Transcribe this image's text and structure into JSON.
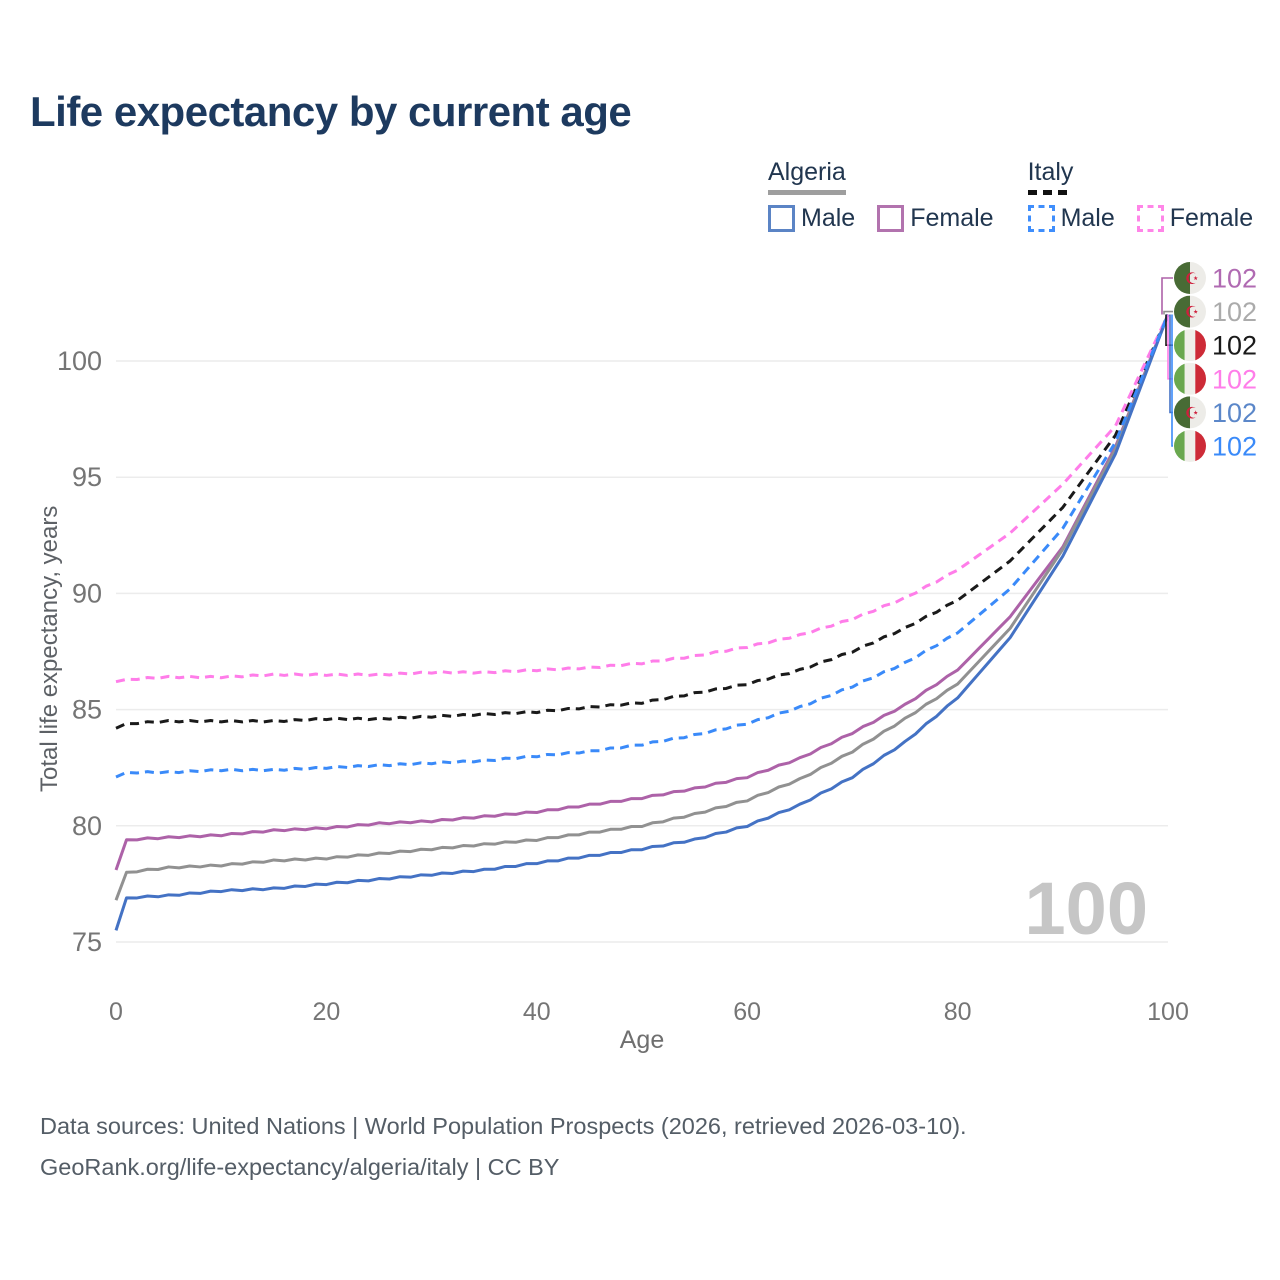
{
  "title": "Life expectancy by current age",
  "legend": {
    "groups": [
      {
        "label": "Algeria",
        "underline_style": "solid",
        "underline_color": "#9e9e9e",
        "items": [
          {
            "label": "Male",
            "color": "#5b84c5",
            "dash": false
          },
          {
            "label": "Female",
            "color": "#b273ae",
            "dash": false
          }
        ]
      },
      {
        "label": "Italy",
        "underline_style": "dashed",
        "underline_color": "#111111",
        "items": [
          {
            "label": "Male",
            "color": "#3f8efc",
            "dash": true
          },
          {
            "label": "Female",
            "color": "#ff85e8",
            "dash": true
          }
        ]
      }
    ]
  },
  "chart_data": {
    "type": "line",
    "title": "Life expectancy by current age",
    "xlabel": "Age",
    "ylabel": "Total life expectancy, years",
    "xlim": [
      0,
      100
    ],
    "ylim": [
      75,
      102.5
    ],
    "xticks": [
      0,
      20,
      40,
      60,
      80,
      100
    ],
    "yticks": [
      75,
      80,
      85,
      90,
      95,
      100
    ],
    "grid": true,
    "legend_position": "top-right",
    "watermark": "100",
    "x": [
      0,
      1,
      5,
      10,
      15,
      20,
      25,
      30,
      35,
      40,
      45,
      50,
      55,
      60,
      65,
      70,
      75,
      80,
      85,
      90,
      95,
      100
    ],
    "series": [
      {
        "id": "algeria-female",
        "name": "Algeria Female",
        "country": "algeria",
        "flag": "algeria-flag",
        "color": "#ad62a8",
        "dash": "solid",
        "end_label": "102",
        "end_label_color": "#b06ab2",
        "values": [
          78.1,
          79.4,
          79.5,
          79.6,
          79.8,
          79.9,
          80.1,
          80.2,
          80.4,
          80.6,
          80.9,
          81.2,
          81.6,
          82.1,
          82.9,
          84.0,
          85.2,
          86.7,
          89.0,
          92.0,
          96.3,
          102
        ]
      },
      {
        "id": "algeria-total",
        "name": "Algeria",
        "country": "algeria",
        "flag": "algeria-flag",
        "color": "#919191",
        "dash": "solid",
        "end_label": "102",
        "end_label_color": "#ababab",
        "values": [
          76.8,
          78.0,
          78.2,
          78.3,
          78.5,
          78.6,
          78.8,
          79.0,
          79.2,
          79.4,
          79.7,
          80.0,
          80.5,
          81.1,
          82.0,
          83.2,
          84.6,
          86.1,
          88.5,
          91.9,
          96.2,
          102
        ]
      },
      {
        "id": "italy-total",
        "name": "Italy",
        "country": "italy",
        "flag": "italy-flag",
        "color": "#1a1a1a",
        "dash": "dashed",
        "end_label": "102",
        "end_label_color": "#1a1a1a",
        "values": [
          84.2,
          84.4,
          84.5,
          84.5,
          84.5,
          84.6,
          84.6,
          84.7,
          84.8,
          84.9,
          85.1,
          85.3,
          85.7,
          86.1,
          86.7,
          87.5,
          88.5,
          89.7,
          91.4,
          93.7,
          96.8,
          102
        ]
      },
      {
        "id": "italy-female",
        "name": "Italy Female",
        "country": "italy",
        "flag": "italy-flag",
        "color": "#ff7de9",
        "dash": "dashed",
        "end_label": "102",
        "end_label_color": "#ff7de9",
        "values": [
          86.2,
          86.3,
          86.4,
          86.4,
          86.5,
          86.5,
          86.5,
          86.6,
          86.6,
          86.7,
          86.8,
          87.0,
          87.3,
          87.7,
          88.2,
          88.9,
          89.8,
          91.0,
          92.6,
          94.7,
          97.2,
          102
        ]
      },
      {
        "id": "algeria-male",
        "name": "Algeria Male",
        "country": "algeria",
        "flag": "algeria-flag",
        "color": "#4472c4",
        "dash": "solid",
        "end_label": "102",
        "end_label_color": "#5b87c9",
        "values": [
          75.5,
          76.9,
          77.0,
          77.2,
          77.3,
          77.5,
          77.7,
          77.9,
          78.1,
          78.4,
          78.7,
          79.0,
          79.4,
          80.0,
          80.9,
          82.1,
          83.6,
          85.5,
          88.1,
          91.6,
          96.0,
          102
        ]
      },
      {
        "id": "italy-male",
        "name": "Italy Male",
        "country": "italy",
        "flag": "italy-flag",
        "color": "#3a8af9",
        "dash": "dashed",
        "end_label": "102",
        "end_label_color": "#3a8af9",
        "values": [
          82.1,
          82.3,
          82.3,
          82.4,
          82.4,
          82.5,
          82.6,
          82.7,
          82.8,
          83.0,
          83.2,
          83.5,
          83.9,
          84.4,
          85.1,
          86.0,
          87.0,
          88.3,
          90.2,
          92.8,
          96.5,
          102
        ]
      }
    ],
    "flag_colors": {
      "algeria": {
        "green": "#486b35",
        "white": "#edece8",
        "emblem": "#cf1f3c"
      },
      "italy": {
        "green": "#6aa84f",
        "white": "#f0efea",
        "red": "#cd2b37"
      }
    }
  },
  "colors": {
    "title_text": "#1d3a5f",
    "axis_text": "#757575",
    "grid_line": "#ececec",
    "watermark_text": "#c6c6c6",
    "legend_text": "#21364f",
    "footer_text": "#545d66"
  },
  "footer": {
    "line1": "Data sources: United Nations | World Population Prospects (2026, retrieved 2026-03-10).",
    "line2": "GeoRank.org/life-expectancy/algeria/italy | CC BY"
  }
}
